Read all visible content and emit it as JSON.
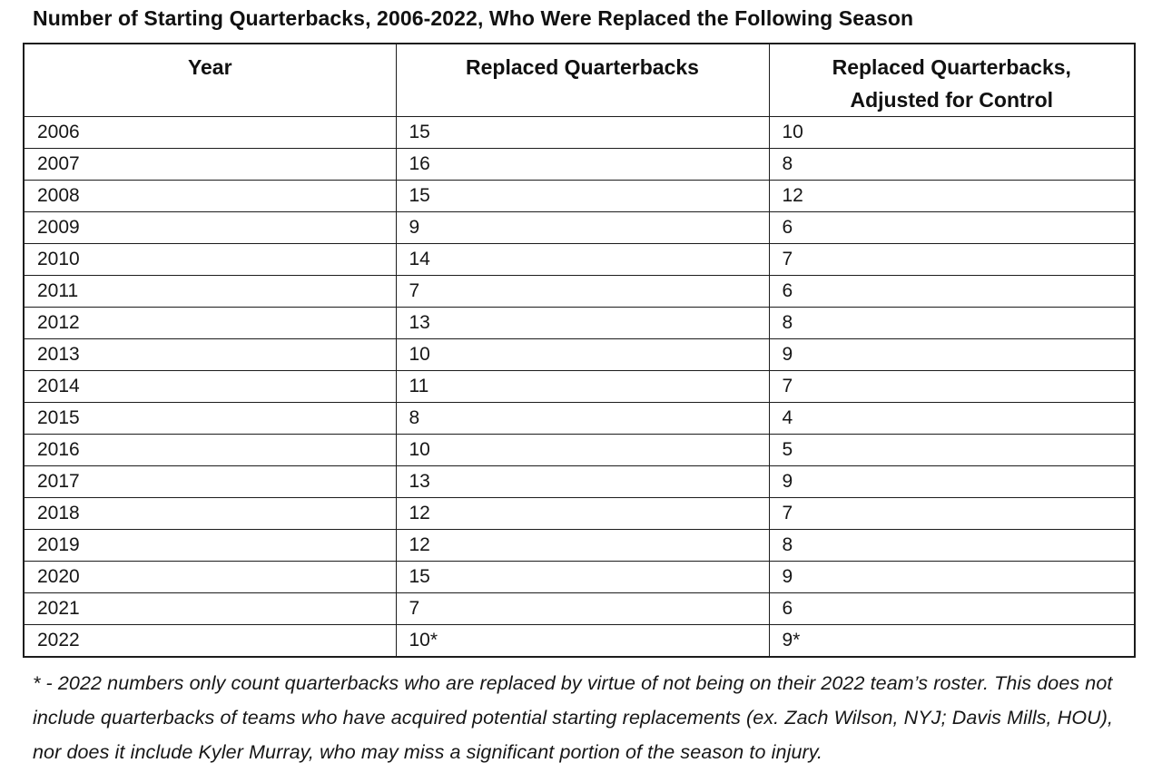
{
  "page": {
    "title": "Number of Starting Quarterbacks, 2006-2022, Who Were Replaced the Following Season"
  },
  "table": {
    "headers": [
      "Year",
      "Replaced Quarterbacks",
      "Replaced Quarterbacks,\nAdjusted for Control"
    ],
    "rows": [
      [
        "2006",
        "15",
        "10"
      ],
      [
        "2007",
        "16",
        "8"
      ],
      [
        "2008",
        "15",
        "12"
      ],
      [
        "2009",
        "9",
        "6"
      ],
      [
        "2010",
        "14",
        "7"
      ],
      [
        "2011",
        "7",
        "6"
      ],
      [
        "2012",
        "13",
        "8"
      ],
      [
        "2013",
        "10",
        "9"
      ],
      [
        "2014",
        "11",
        "7"
      ],
      [
        "2015",
        "8",
        "4"
      ],
      [
        "2016",
        "10",
        "5"
      ],
      [
        "2017",
        "13",
        "9"
      ],
      [
        "2018",
        "12",
        "7"
      ],
      [
        "2019",
        "12",
        "8"
      ],
      [
        "2020",
        "15",
        "9"
      ],
      [
        "2021",
        "7",
        "6"
      ],
      [
        "2022",
        "10*",
        "9*"
      ]
    ]
  },
  "footnote": {
    "text": "* - 2022 numbers only count quarterbacks who are replaced by virtue of not being on their 2022 team’s roster. This does not include quarterbacks of teams who have acquired potential starting replacements (ex. Zach Wilson, NYJ; Davis Mills, HOU), nor does it include Kyler Murray, who may miss a significant portion of the season to injury."
  },
  "colors": {
    "background": "#ffffff",
    "text": "#161616",
    "border": "#1c1c1c"
  }
}
